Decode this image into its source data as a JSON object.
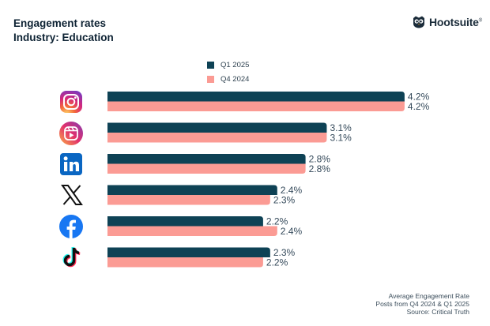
{
  "header": {
    "title": "Engagement rates",
    "subtitle": "Industry: Education",
    "brand": "Hootsuite",
    "brand_mark": "®"
  },
  "colors": {
    "q1_2025": "#0e4255",
    "q4_2024": "#fb9b94",
    "text": "#0d2233"
  },
  "footer": {
    "line1": "Average Engagement Rate",
    "line2": "Posts from Q4 2024 & Q1 2025",
    "line3": "Source: Critical Truth"
  },
  "chart_data": {
    "type": "bar",
    "orientation": "horizontal",
    "title": "Engagement rates",
    "subtitle": "Industry: Education",
    "categories": [
      "Instagram",
      "Instagram Reels",
      "LinkedIn",
      "X",
      "Facebook",
      "TikTok"
    ],
    "category_icons": [
      "instagram-icon",
      "instagram-reels-icon",
      "linkedin-icon",
      "x-icon",
      "facebook-icon",
      "tiktok-icon"
    ],
    "series": [
      {
        "name": "Q1 2025",
        "values": [
          4.2,
          3.1,
          2.8,
          2.4,
          2.2,
          2.3
        ],
        "labels": [
          "4.2%",
          "3.1%",
          "2.8%",
          "2.4%",
          "2.2%",
          "2.3%"
        ]
      },
      {
        "name": "Q4 2024",
        "values": [
          4.2,
          3.1,
          2.8,
          2.3,
          2.4,
          2.2
        ],
        "labels": [
          "4.2%",
          "3.1%",
          "2.8%",
          "2.3%",
          "2.4%",
          "2.2%"
        ]
      }
    ],
    "xlim": [
      0,
      4.5
    ],
    "grid": false,
    "legend": "top-center",
    "xlabel": "",
    "ylabel": ""
  }
}
